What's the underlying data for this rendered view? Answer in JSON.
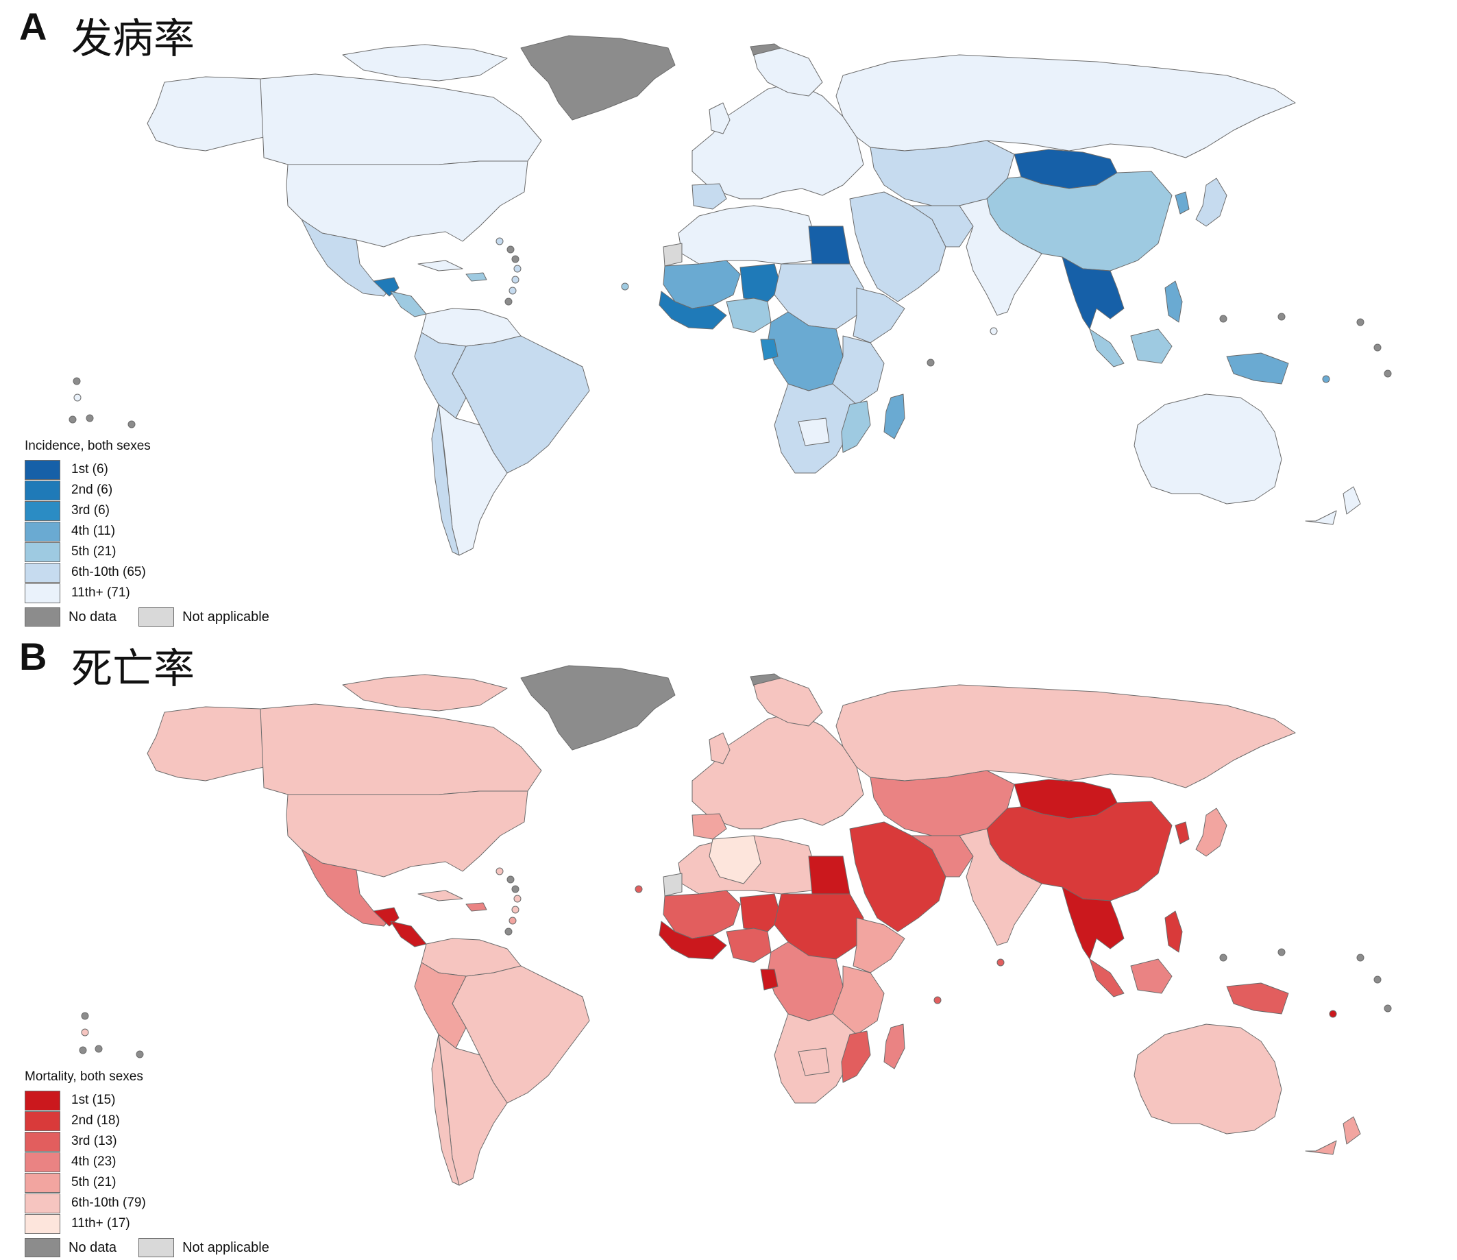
{
  "panels": [
    {
      "letter": "A",
      "title": "发病率",
      "legend": {
        "title": "Incidence, both sexes",
        "items": [
          {
            "label": "1st (6)",
            "color": "#1660a8"
          },
          {
            "label": "2nd (6)",
            "color": "#1f7ab8"
          },
          {
            "label": "3rd (6)",
            "color": "#2b8cc4"
          },
          {
            "label": "4th (11)",
            "color": "#6aaad2"
          },
          {
            "label": "5th (21)",
            "color": "#9ecae1"
          },
          {
            "label": "6th-10th (65)",
            "color": "#c6dbef"
          },
          {
            "label": "11th+ (71)",
            "color": "#eaf2fb"
          }
        ],
        "no_data": {
          "label": "No data",
          "color": "#8c8c8c"
        },
        "not_applicable": {
          "label": "Not applicable",
          "color": "#d9d9d9"
        }
      }
    },
    {
      "letter": "B",
      "title": "死亡率",
      "legend": {
        "title": "Mortality, both sexes",
        "items": [
          {
            "label": "1st (15)",
            "color": "#cb181d"
          },
          {
            "label": "2nd (18)",
            "color": "#d93a3a"
          },
          {
            "label": "3rd (13)",
            "color": "#e25e5e"
          },
          {
            "label": "4th (23)",
            "color": "#ea8383"
          },
          {
            "label": "5th (21)",
            "color": "#f2a5a0"
          },
          {
            "label": "6th-10th (79)",
            "color": "#f6c5c0"
          },
          {
            "label": "11th+ (17)",
            "color": "#fde5dc"
          }
        ],
        "no_data": {
          "label": "No data",
          "color": "#8c8c8c"
        },
        "not_applicable": {
          "label": "Not applicable",
          "color": "#d9d9d9"
        }
      }
    }
  ]
}
